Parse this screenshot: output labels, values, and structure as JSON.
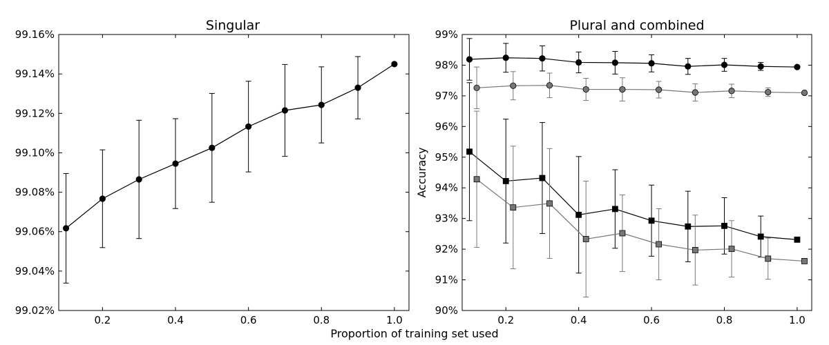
{
  "figure": {
    "shared_xlabel": "Proportion of training set used"
  },
  "chart_data": [
    {
      "type": "line",
      "title": "Singular",
      "xlabel": "",
      "ylabel": "",
      "xlim": [
        0.08,
        1.04
      ],
      "ylim": [
        99.02,
        99.16
      ],
      "xticks": [
        "0.2",
        "0.4",
        "0.6",
        "0.8",
        "1.0"
      ],
      "xtick_values": [
        0.2,
        0.4,
        0.6,
        0.8,
        1.0
      ],
      "yticks": [
        "99.02%",
        "99.04%",
        "99.06%",
        "99.08%",
        "99.10%",
        "99.12%",
        "99.14%",
        "99.16%"
      ],
      "ytick_values": [
        99.02,
        99.04,
        99.06,
        99.08,
        99.1,
        99.12,
        99.14,
        99.16
      ],
      "grid": false,
      "series": [
        {
          "color": "#000000",
          "marker": "circle",
          "x": [
            0.1,
            0.2,
            0.3,
            0.4,
            0.5,
            0.6,
            0.7,
            0.8,
            0.9,
            1.0
          ],
          "y": [
            99.0617,
            99.0767,
            99.0865,
            99.0945,
            99.1025,
            99.1133,
            99.1215,
            99.1243,
            99.133,
            99.145
          ],
          "err": [
            0.0278,
            0.0248,
            0.03,
            0.0228,
            0.0276,
            0.023,
            0.0233,
            0.0193,
            0.0158,
            0.0
          ]
        }
      ]
    },
    {
      "type": "line",
      "title": "Plural and combined",
      "xlabel": "",
      "ylabel": "Accuracy",
      "xlim": [
        0.08,
        1.04
      ],
      "ylim": [
        90,
        99
      ],
      "xticks": [
        "0.2",
        "0.4",
        "0.6",
        "0.8",
        "1.0"
      ],
      "xtick_values": [
        0.2,
        0.4,
        0.6,
        0.8,
        1.0
      ],
      "yticks": [
        "90%",
        "91%",
        "92%",
        "93%",
        "94%",
        "95%",
        "96%",
        "97%",
        "98%",
        "99%"
      ],
      "ytick_values": [
        90,
        91,
        92,
        93,
        94,
        95,
        96,
        97,
        98,
        99
      ],
      "grid": false,
      "series": [
        {
          "color": "#000000",
          "marker": "circle",
          "x": [
            0.1,
            0.2,
            0.3,
            0.4,
            0.5,
            0.6,
            0.7,
            0.8,
            0.9,
            1.0
          ],
          "y": [
            98.19,
            98.24,
            98.22,
            98.09,
            98.08,
            98.06,
            97.96,
            98.01,
            97.96,
            97.94
          ],
          "err": [
            0.68,
            0.47,
            0.41,
            0.34,
            0.37,
            0.28,
            0.26,
            0.21,
            0.13,
            0.0
          ]
        },
        {
          "color": "#777777",
          "marker": "circle",
          "x": [
            0.12,
            0.22,
            0.32,
            0.42,
            0.52,
            0.62,
            0.72,
            0.82,
            0.92,
            1.02
          ],
          "y": [
            97.26,
            97.33,
            97.34,
            97.21,
            97.21,
            97.2,
            97.11,
            97.16,
            97.12,
            97.1
          ],
          "err": [
            0.68,
            0.46,
            0.4,
            0.36,
            0.38,
            0.27,
            0.28,
            0.22,
            0.14,
            0.0
          ]
        },
        {
          "color": "#000000",
          "marker": "square",
          "x": [
            0.1,
            0.2,
            0.3,
            0.4,
            0.5,
            0.6,
            0.7,
            0.8,
            0.9,
            1.0
          ],
          "y": [
            95.18,
            94.22,
            94.32,
            93.12,
            93.31,
            92.93,
            92.74,
            92.76,
            92.41,
            92.31
          ],
          "err": [
            2.25,
            2.02,
            1.81,
            1.9,
            1.28,
            1.16,
            1.15,
            0.92,
            0.67,
            0.0
          ]
        },
        {
          "color": "#777777",
          "marker": "square",
          "x": [
            0.12,
            0.22,
            0.32,
            0.42,
            0.52,
            0.62,
            0.72,
            0.82,
            0.92,
            1.02
          ],
          "y": [
            94.28,
            93.36,
            93.49,
            92.33,
            92.52,
            92.16,
            91.97,
            92.01,
            91.69,
            91.61
          ],
          "err": [
            2.22,
            2.0,
            1.79,
            1.89,
            1.25,
            1.16,
            1.14,
            0.92,
            0.67,
            0.0
          ]
        }
      ]
    }
  ]
}
